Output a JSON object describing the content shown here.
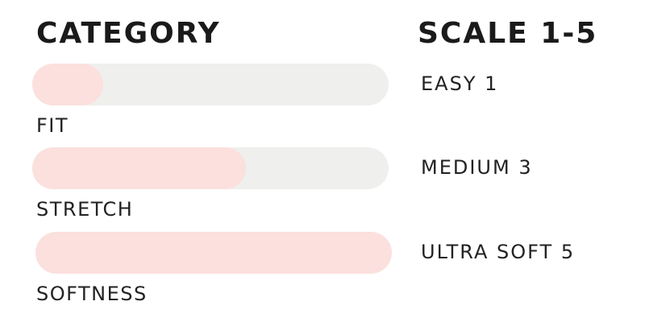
{
  "headers": {
    "category": "CATEGORY",
    "scale": "SCALE 1-5"
  },
  "colors": {
    "track": "#efefed",
    "fill": "#fbe0dd"
  },
  "max_scale": 5,
  "rows": [
    {
      "category": "FIT",
      "scale_label": "EASY 1",
      "value": 1
    },
    {
      "category": "STRETCH",
      "scale_label": "MEDIUM 3",
      "value": 3
    },
    {
      "category": "SOFTNESS",
      "scale_label": "ULTRA SOFT 5",
      "value": 5
    }
  ]
}
